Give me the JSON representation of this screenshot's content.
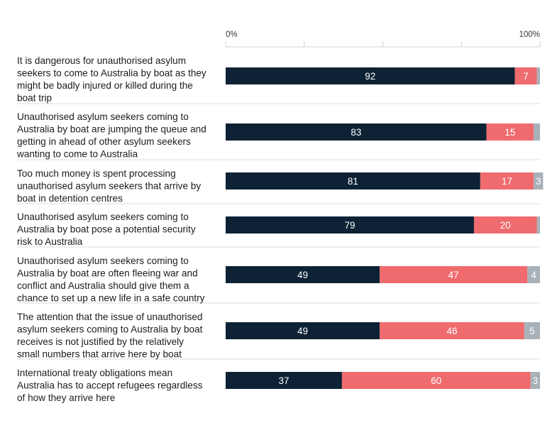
{
  "chart_data": {
    "type": "bar",
    "orientation": "horizontal",
    "stacked": true,
    "xlim": [
      0,
      100
    ],
    "tick_labels": {
      "start": "0%",
      "end": "100%"
    },
    "categories": [
      [
        "It is dangerous for unauthorised asylum",
        "seekers to come to Australia by boat as they",
        "might be badly injured or killed during the",
        "boat trip"
      ],
      [
        "Unauthorised asylum seekers coming to",
        "Australia by boat are jumping the queue and",
        "getting in ahead of other asylum seekers",
        "wanting to come to Australia"
      ],
      [
        "Too much money is spent processing",
        "unauthorised asylum seekers that arrive by",
        "boat in detention centres"
      ],
      [
        "Unauthorised asylum seekers coming to",
        "Australia by boat pose a potential security",
        "risk to Australia"
      ],
      [
        "Unauthorised asylum seekers coming to",
        "Australia by boat are often fleeing war and",
        "conflict and Australia should give them a",
        "chance to set up a new life in a safe country"
      ],
      [
        "The attention that the issue of unauthorised",
        "asylum seekers coming to Australia by boat",
        "receives is not justified by the relatively",
        "small numbers that arrive here by boat"
      ],
      [
        "International treaty obligations mean",
        "Australia has to accept refugees regardless",
        "of how they arrive here"
      ]
    ],
    "series": [
      {
        "color": "#0d2235",
        "label_color": "#ffffff",
        "values": [
          92,
          83,
          81,
          79,
          49,
          49,
          37
        ]
      },
      {
        "color": "#ef6b6e",
        "label_color": "#ffffff",
        "values": [
          7,
          15,
          17,
          20,
          47,
          46,
          60
        ]
      },
      {
        "color": "#a9b1b8",
        "label_color": "#ffffff",
        "values": [
          1,
          2,
          3,
          1,
          4,
          5,
          3
        ]
      }
    ],
    "data_labels": [
      [
        "92",
        "7",
        ""
      ],
      [
        "83",
        "15",
        ""
      ],
      [
        "81",
        "17",
        "3"
      ],
      [
        "79",
        "20",
        ""
      ],
      [
        "49",
        "47",
        "4"
      ],
      [
        "49",
        "46",
        "5"
      ],
      [
        "37",
        "60",
        "3"
      ]
    ],
    "gridlines": true,
    "grid_color": "#cfd3d6"
  }
}
